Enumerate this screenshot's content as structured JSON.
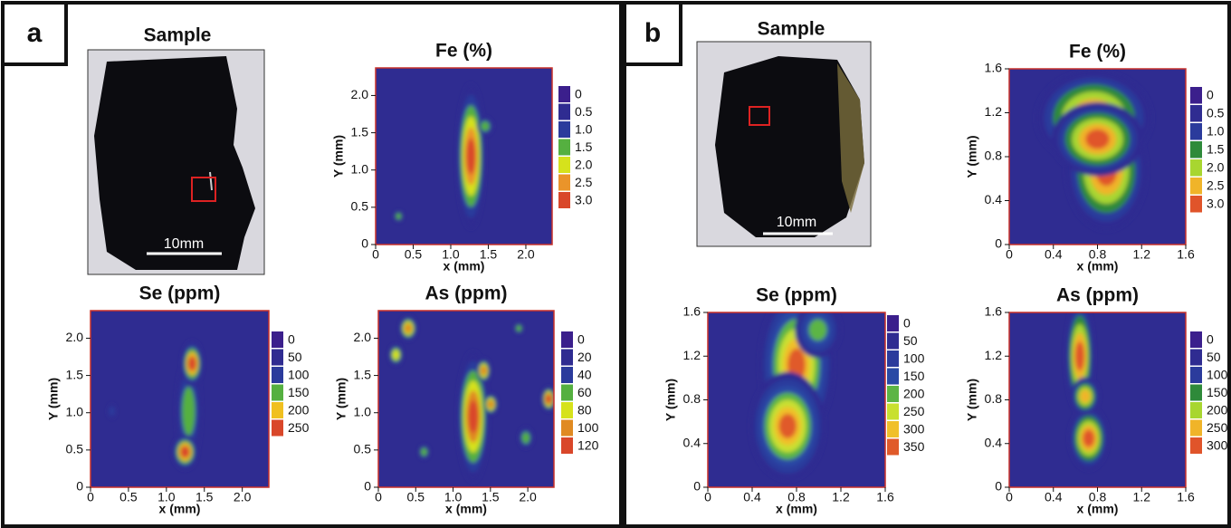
{
  "panel_labels": [
    "a",
    "b"
  ],
  "samples": [
    {
      "title": "Sample",
      "scale_bar": "10mm"
    },
    {
      "title": "Sample",
      "scale_bar": "10mm"
    }
  ],
  "chart_data": [
    {
      "type": "contour",
      "title": "Fe (%)",
      "xlabel": "x (mm)",
      "ylabel": "Y (mm)",
      "xlim": [
        0,
        2.35
      ],
      "ylim": [
        0,
        2.37
      ],
      "xticks": [
        0,
        0.5,
        {
          "value": 1,
          "label": "1.0"
        },
        1.5,
        {
          "value": 2,
          "label": "2.0"
        }
      ],
      "yticks": [
        0,
        0.5,
        {
          "value": 1,
          "label": "1.0"
        },
        1.5,
        {
          "value": 2,
          "label": "2.0"
        }
      ],
      "levels": [
        0,
        0.5,
        {
          "value": 1,
          "label": "1.0"
        },
        1.5,
        {
          "value": 2,
          "label": "2.0"
        },
        2.5,
        {
          "value": 3,
          "label": "3.0"
        }
      ],
      "colors": [
        "#3b1f8c",
        "#2f2c91",
        "#2b3b9c",
        "#55b040",
        "#d6e21c",
        "#ea942a",
        "#d9472a"
      ]
    },
    {
      "type": "contour",
      "title": "Se (ppm)",
      "xlabel": "x (mm)",
      "ylabel": "Y (mm)",
      "xlim": [
        0,
        2.35
      ],
      "ylim": [
        0,
        2.37
      ],
      "xticks": [
        0,
        0.5,
        {
          "value": 1,
          "label": "1.0"
        },
        1.5,
        {
          "value": 2,
          "label": "2.0"
        }
      ],
      "yticks": [
        0,
        0.5,
        {
          "value": 1,
          "label": "1.0"
        },
        1.5,
        {
          "value": 2,
          "label": "2.0"
        }
      ],
      "levels": [
        0,
        50,
        100,
        150,
        200,
        250
      ],
      "colors": [
        "#3b1f8c",
        "#2f2c91",
        "#2b3b9c",
        "#55b040",
        "#f0c020",
        "#d9472a"
      ]
    },
    {
      "type": "contour",
      "title": "As (ppm)",
      "xlabel": "x (mm)",
      "ylabel": "Y (mm)",
      "xlim": [
        0,
        2.35
      ],
      "ylim": [
        0,
        2.37
      ],
      "xticks": [
        0,
        0.5,
        {
          "value": 1,
          "label": "1.0"
        },
        1.5,
        {
          "value": 2,
          "label": "2.0"
        }
      ],
      "yticks": [
        0,
        0.5,
        {
          "value": 1,
          "label": "1.0"
        },
        1.5,
        {
          "value": 2,
          "label": "2.0"
        }
      ],
      "levels": [
        0,
        20,
        40,
        60,
        80,
        100,
        120
      ],
      "colors": [
        "#3b1f8c",
        "#2f2c91",
        "#2b3b9c",
        "#55b040",
        "#d6e21c",
        "#e08a22",
        "#d9472a"
      ]
    },
    {
      "type": "contour",
      "title": "Fe (%)",
      "xlabel": "x (mm)",
      "ylabel": "Y (mm)",
      "xlim": [
        0,
        1.6
      ],
      "ylim": [
        0,
        1.6
      ],
      "xticks": [
        0,
        0.4,
        0.8,
        1.2,
        1.6
      ],
      "yticks": [
        0,
        0.4,
        0.8,
        1.2,
        1.6
      ],
      "levels": [
        0,
        0.5,
        {
          "value": 1,
          "label": "1.0"
        },
        1.5,
        {
          "value": 2,
          "label": "2.0"
        },
        2.5,
        {
          "value": 3,
          "label": "3.0"
        }
      ],
      "colors": [
        "#3b1f8c",
        "#2f2c91",
        "#2b3b9c",
        "#2e8a3a",
        "#a8d630",
        "#f0b429",
        "#e0542a"
      ]
    },
    {
      "type": "contour",
      "title": "Se (ppm)",
      "xlabel": "x (mm)",
      "ylabel": "Y (mm)",
      "xlim": [
        0,
        1.6
      ],
      "ylim": [
        0,
        1.6
      ],
      "xticks": [
        0,
        0.4,
        0.8,
        1.2,
        1.6
      ],
      "yticks": [
        0,
        0.4,
        0.8,
        1.2,
        1.6
      ],
      "levels": [
        0,
        50,
        100,
        150,
        200,
        250,
        300,
        350
      ],
      "colors": [
        "#3b1f8c",
        "#2f2c91",
        "#2b3b9c",
        "#2a4aa5",
        "#5cb545",
        "#c8e030",
        "#f0c02a",
        "#e05a2a"
      ]
    },
    {
      "type": "contour",
      "title": "As (ppm)",
      "xlabel": "x (mm)",
      "ylabel": "Y (mm)",
      "xlim": [
        0,
        1.6
      ],
      "ylim": [
        0,
        1.6
      ],
      "xticks": [
        0,
        0.4,
        0.8,
        1.2,
        1.6
      ],
      "yticks": [
        0,
        0.4,
        0.8,
        1.2,
        1.6
      ],
      "levels": [
        0,
        50,
        100,
        150,
        200,
        250,
        300
      ],
      "colors": [
        "#3b1f8c",
        "#2f2c91",
        "#2b3b9c",
        "#2e8a3a",
        "#a8d630",
        "#f0b429",
        "#e0542a"
      ]
    }
  ]
}
